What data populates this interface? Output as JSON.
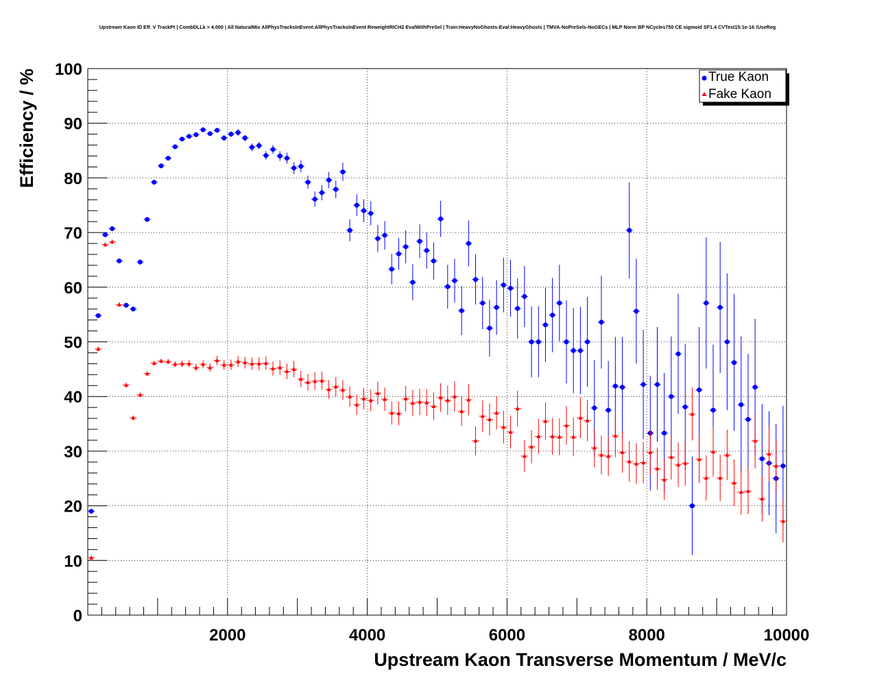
{
  "chart_data": {
    "type": "scatter",
    "title": "Upstream Kaon ID Eff. V TrackPt | CombDLLk > 4.000 | All NaturalMix AllPhysTracksInEvent:AllPhysTracksInEvent ReweightRICH2 EvalWithPreSel | Train:HeavyNoGhosts-Eval:HeavyGhosts | TMVA-NoPreSels-NoGECs | MLP Norm BP NCycles750 CE sigmoid SF1.4 CVTest15:1e-16 !UseReg",
    "xlabel": "Upstream Kaon Transverse Momentum / MeV/c",
    "ylabel": "Efficiency / %",
    "xlim": [
      0,
      10000
    ],
    "ylim": [
      0,
      100
    ],
    "xticks": [
      2000,
      4000,
      6000,
      8000,
      10000
    ],
    "yticks": [
      0,
      10,
      20,
      30,
      40,
      50,
      60,
      70,
      80,
      90,
      100
    ],
    "grid": true,
    "legend_position": "top-right",
    "series": [
      {
        "name": "True Kaon",
        "color": "#0000ff",
        "marker": "circle",
        "x": [
          50,
          150,
          250,
          350,
          450,
          550,
          650,
          750,
          850,
          950,
          1050,
          1150,
          1250,
          1350,
          1450,
          1550,
          1650,
          1750,
          1850,
          1950,
          2050,
          2150,
          2250,
          2350,
          2450,
          2550,
          2650,
          2750,
          2850,
          2950,
          3050,
          3150,
          3250,
          3350,
          3450,
          3550,
          3650,
          3750,
          3850,
          3950,
          4050,
          4150,
          4250,
          4350,
          4450,
          4550,
          4650,
          4750,
          4850,
          4950,
          5050,
          5150,
          5250,
          5350,
          5450,
          5550,
          5650,
          5750,
          5850,
          5950,
          6050,
          6150,
          6250,
          6350,
          6450,
          6550,
          6650,
          6750,
          6850,
          6950,
          7050,
          7150,
          7250,
          7350,
          7450,
          7550,
          7650,
          7750,
          7850,
          7950,
          8050,
          8150,
          8250,
          8350,
          8450,
          8550,
          8650,
          8750,
          8850,
          8950,
          9050,
          9150,
          9250,
          9350,
          9450,
          9550,
          9650,
          9750,
          9850,
          9950
        ],
        "y": [
          19.0,
          54.8,
          69.6,
          70.7,
          64.8,
          56.7,
          56.0,
          64.6,
          72.4,
          79.2,
          82.2,
          83.6,
          85.7,
          87.1,
          87.6,
          87.9,
          88.8,
          88.1,
          88.7,
          87.3,
          88.0,
          88.3,
          87.3,
          85.6,
          85.9,
          84.1,
          85.2,
          84.0,
          83.6,
          81.8,
          82.1,
          79.2,
          76.1,
          77.3,
          79.6,
          77.9,
          81.1,
          70.4,
          75.0,
          74.0,
          73.5,
          68.9,
          69.5,
          63.3,
          66.1,
          67.4,
          60.9,
          68.4,
          66.7,
          64.8,
          72.5,
          60.1,
          61.2,
          55.7,
          68.0,
          61.4,
          57.1,
          52.5,
          56.3,
          60.4,
          59.8,
          56.1,
          58.3,
          50.0,
          50.0,
          53.1,
          54.9,
          57.1,
          50.0,
          48.4,
          48.4,
          50.0,
          37.9,
          53.6,
          37.5,
          41.9,
          41.7,
          70.4,
          55.6,
          42.2,
          33.3,
          42.2,
          33.3,
          40.0,
          47.8,
          38.1,
          20.0,
          41.2,
          57.1,
          37.5,
          56.3,
          50.0,
          46.2,
          38.5,
          35.8,
          41.7,
          28.6,
          27.8,
          25.0,
          27.3
        ],
        "yerr": [
          0.3,
          0.4,
          0.4,
          0.4,
          0.3,
          0.3,
          0.3,
          0.3,
          0.3,
          0.3,
          0.3,
          0.3,
          0.3,
          0.3,
          0.4,
          0.4,
          0.4,
          0.4,
          0.4,
          0.5,
          0.5,
          0.6,
          0.6,
          0.7,
          0.7,
          0.8,
          0.8,
          0.9,
          1.0,
          1.1,
          1.1,
          1.2,
          1.4,
          1.4,
          1.5,
          1.6,
          1.7,
          2.0,
          2.0,
          2.1,
          2.2,
          2.5,
          2.6,
          2.8,
          2.9,
          3.0,
          3.3,
          3.1,
          3.3,
          3.4,
          3.3,
          4.0,
          4.0,
          4.5,
          4.2,
          4.6,
          4.8,
          5.2,
          5.0,
          5.0,
          5.2,
          5.5,
          5.6,
          6.5,
          6.5,
          6.8,
          6.8,
          7.0,
          7.6,
          7.8,
          8.0,
          8.2,
          8.8,
          8.5,
          9.0,
          9.0,
          9.2,
          8.8,
          9.6,
          10.0,
          10.5,
          10.5,
          11.0,
          11.0,
          11.0,
          11.5,
          9.0,
          11.5,
          12.0,
          12.0,
          12.0,
          12.5,
          12.5,
          12.5,
          12.0,
          12.5,
          10.0,
          9.5,
          10.0,
          11.0
        ]
      },
      {
        "name": "Fake Kaon",
        "color": "#ff0000",
        "marker": "triangle",
        "x": [
          50,
          150,
          250,
          350,
          450,
          550,
          650,
          750,
          850,
          950,
          1050,
          1150,
          1250,
          1350,
          1450,
          1550,
          1650,
          1750,
          1850,
          1950,
          2050,
          2150,
          2250,
          2350,
          2450,
          2550,
          2650,
          2750,
          2850,
          2950,
          3050,
          3150,
          3250,
          3350,
          3450,
          3550,
          3650,
          3750,
          3850,
          3950,
          4050,
          4150,
          4250,
          4350,
          4450,
          4550,
          4650,
          4750,
          4850,
          4950,
          5050,
          5150,
          5250,
          5350,
          5450,
          5550,
          5650,
          5750,
          5850,
          5950,
          6050,
          6150,
          6250,
          6350,
          6450,
          6550,
          6650,
          6750,
          6850,
          6950,
          7050,
          7150,
          7250,
          7350,
          7450,
          7550,
          7650,
          7750,
          7850,
          7950,
          8050,
          8150,
          8250,
          8350,
          8450,
          8550,
          8650,
          8750,
          8850,
          8950,
          9050,
          9150,
          9250,
          9350,
          9450,
          9550,
          9650,
          9750,
          9850,
          9950
        ],
        "y": [
          10.5,
          48.7,
          67.8,
          68.3,
          56.8,
          42.1,
          36.1,
          40.3,
          44.2,
          46.1,
          46.5,
          46.4,
          45.9,
          46.0,
          46.0,
          45.3,
          45.9,
          45.3,
          46.6,
          45.8,
          45.8,
          46.4,
          46.2,
          46.0,
          46.0,
          46.1,
          45.1,
          45.3,
          44.6,
          45.0,
          43.2,
          42.6,
          42.8,
          42.9,
          41.3,
          41.8,
          41.2,
          40.0,
          38.5,
          39.6,
          39.3,
          40.6,
          39.5,
          37.0,
          36.9,
          39.6,
          38.8,
          39.0,
          38.9,
          38.2,
          39.8,
          39.3,
          40.0,
          37.3,
          39.4,
          31.9,
          36.4,
          35.8,
          37.0,
          34.4,
          33.5,
          37.8,
          29.1,
          30.8,
          32.7,
          35.5,
          32.7,
          32.6,
          34.7,
          32.6,
          36.1,
          35.6,
          30.6,
          29.3,
          29.1,
          32.8,
          29.8,
          28.1,
          27.7,
          27.9,
          29.8,
          26.8,
          24.8,
          28.9,
          27.5,
          27.8,
          36.8,
          28.5,
          25.1,
          29.9,
          25.1,
          29.3,
          24.2,
          22.5,
          22.7,
          31.9,
          21.3,
          29.5,
          27.3,
          17.2
        ]
      }
    ]
  }
}
